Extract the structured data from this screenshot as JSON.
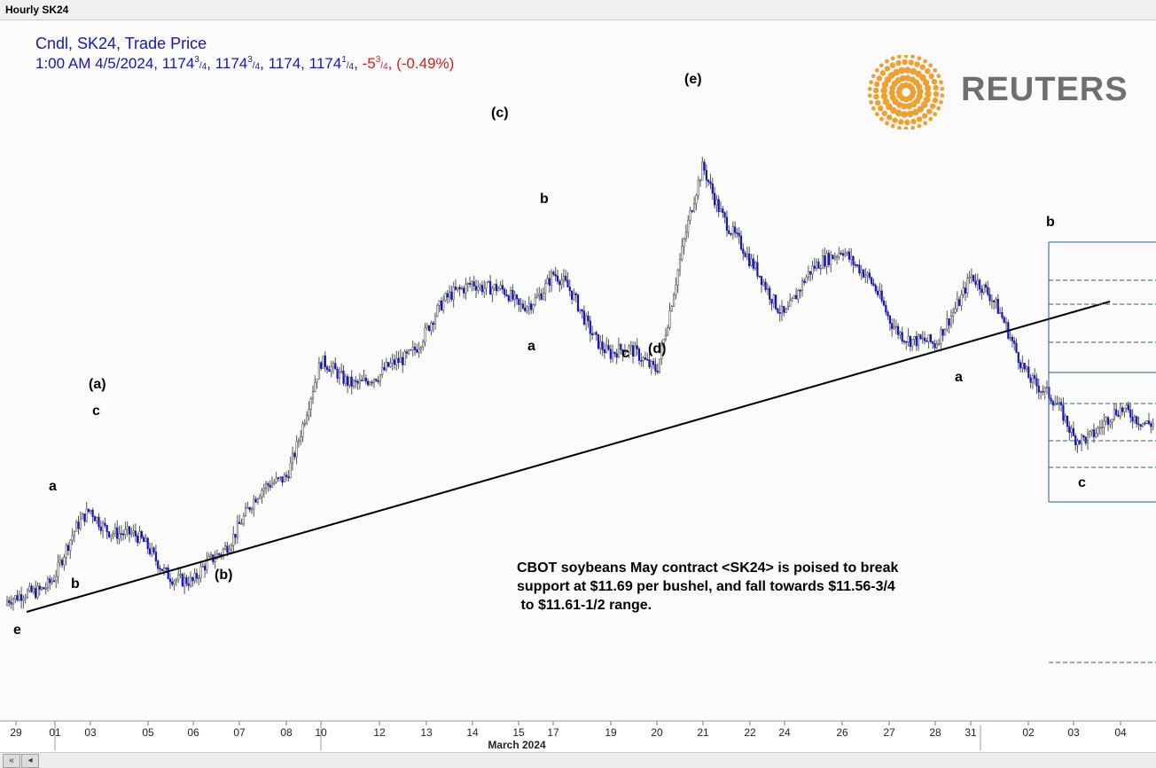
{
  "window": {
    "title": "Hourly SK24"
  },
  "legend": {
    "line1": "Cndl, SK24, Trade Price",
    "time": "1:00 AM 4/5/2024,",
    "o_whole": "1174",
    "o_num": "3",
    "o_den": "4",
    "h_whole": "1174",
    "h_num": "3",
    "h_den": "4",
    "low": "1174,",
    "c_whole": "1174",
    "c_num": "1",
    "c_den": "4",
    "chg_whole": "-5",
    "chg_num": "3",
    "chg_den": "4",
    "pct": "(-0.49%)"
  },
  "logo": {
    "text": "REUTERS"
  },
  "annotation": "CBOT soybeans May contract <SK24> is poised to break\nsupport at $11.69 per bushel, and fall towards $11.56-3/4\n to $11.61-1/2 range.",
  "colors": {
    "candle": "#1515c8",
    "shadow": "#555555",
    "trendline": "#000000",
    "projection": "#2b5d8a",
    "background": "#fbfbfb"
  },
  "chart_data": {
    "type": "candlestick",
    "instrument": "SK24",
    "xlabel": "March 2024",
    "x_ticks": [
      "29",
      "01",
      "03",
      "05",
      "06",
      "07",
      "08",
      "10",
      "12",
      "13",
      "14",
      "15",
      "17",
      "19",
      "20",
      "21",
      "22",
      "24",
      "26",
      "27",
      "28",
      "31",
      "02",
      "03",
      "04"
    ],
    "series_close_path": [
      [
        "29",
        1170
      ],
      [
        "01",
        1180
      ],
      [
        "03",
        1198
      ],
      [
        "05",
        1186
      ],
      [
        "06",
        1175
      ],
      [
        "07",
        1195
      ],
      [
        "08",
        1210
      ],
      [
        "10",
        1240
      ],
      [
        "12",
        1236
      ],
      [
        "13",
        1252
      ],
      [
        "14",
        1268
      ],
      [
        "15",
        1258
      ],
      [
        "17",
        1268
      ],
      [
        "19",
        1245
      ],
      [
        "20",
        1242
      ],
      [
        "21",
        1300
      ],
      [
        "22",
        1270
      ],
      [
        "24",
        1258
      ],
      [
        "26",
        1278
      ],
      [
        "27",
        1255
      ],
      [
        "28",
        1245
      ],
      [
        "31",
        1270
      ],
      [
        "02",
        1240
      ],
      [
        "03",
        1220
      ],
      [
        "04",
        1226
      ]
    ],
    "wave_labels": [
      {
        "text": "e",
        "x": "29",
        "price": 1164
      },
      {
        "text": "a",
        "x": "01",
        "price": 1192
      },
      {
        "text": "b",
        "x": "01",
        "price": 1166
      },
      {
        "text": "c",
        "x": "03",
        "price": 1212
      },
      {
        "text": "(a)",
        "x": "03",
        "price": 1218
      },
      {
        "text": "(b)",
        "x": "06",
        "price": 1164
      },
      {
        "text": "(c)",
        "x": "14",
        "price": 1306
      },
      {
        "text": "b",
        "x": "15",
        "price": 1284
      },
      {
        "text": "a",
        "x": "15",
        "price": 1238
      },
      {
        "text": "c",
        "x": "19",
        "price": 1234
      },
      {
        "text": "(d)",
        "x": "20",
        "price": 1235
      },
      {
        "text": "(e)",
        "x": "21",
        "price": 1318
      },
      {
        "text": "a",
        "x": "31",
        "price": 1226
      },
      {
        "text": "b",
        "x": "02",
        "price": 1280
      },
      {
        "text": "c",
        "x": "03",
        "price": 1196
      }
    ],
    "trendline": {
      "from": [
        "29",
        1168
      ],
      "to": [
        "04",
        1250
      ]
    },
    "projection_levels": [
      1231,
      1225,
      1210,
      1205,
      1193,
      1187,
      1182,
      1172
    ]
  }
}
